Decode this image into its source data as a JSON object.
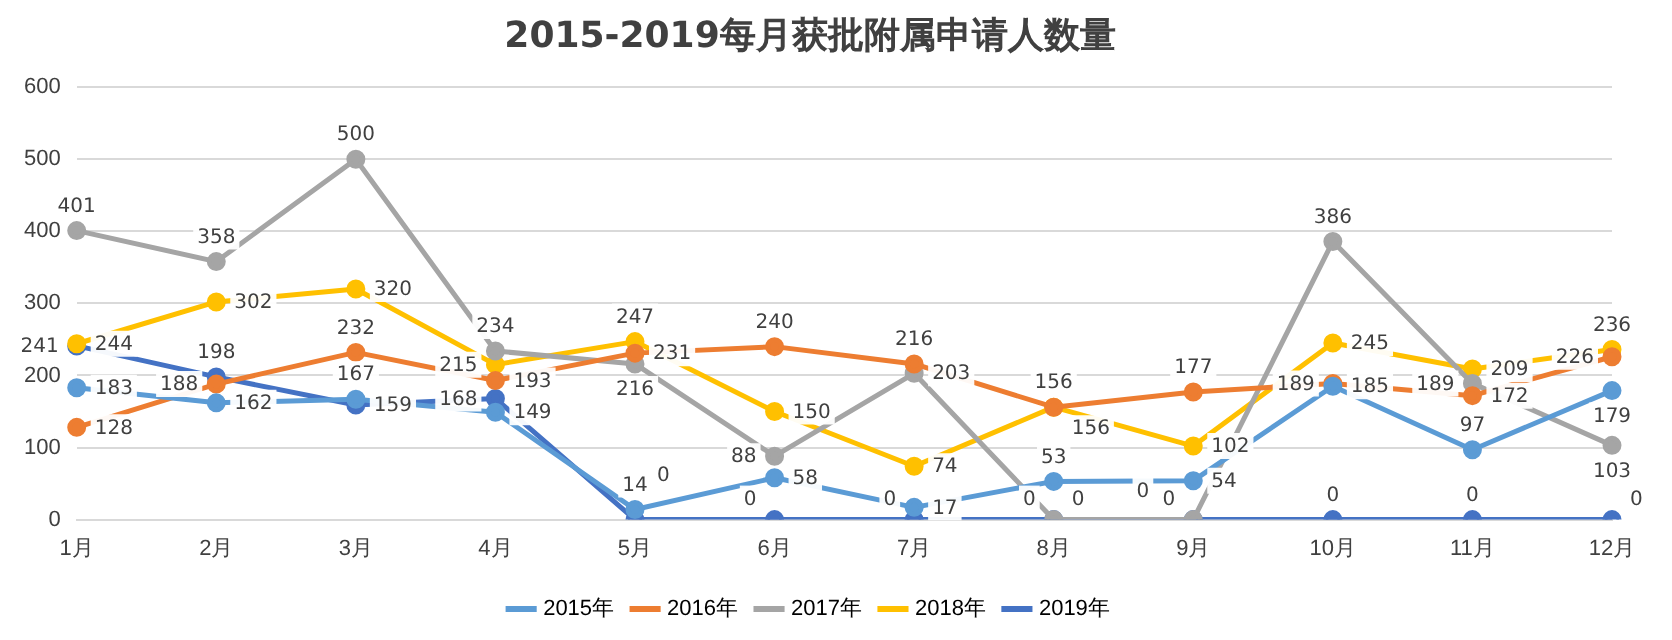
{
  "chart_data": {
    "type": "line",
    "title": "2015-2019每月获批附属申请人数量",
    "categories": [
      "1月",
      "2月",
      "3月",
      "4月",
      "5月",
      "6月",
      "7月",
      "8月",
      "9月",
      "10月",
      "11月",
      "12月"
    ],
    "series": [
      {
        "name": "2015年",
        "color": "#5b9bd5",
        "values": [
          183,
          162,
          167,
          149,
          14,
          58,
          17,
          53,
          54,
          185,
          97,
          179
        ]
      },
      {
        "name": "2016年",
        "color": "#ed7d31",
        "values": [
          128,
          188,
          232,
          193,
          231,
          240,
          216,
          156,
          177,
          189,
          172,
          226
        ]
      },
      {
        "name": "2017年",
        "color": "#a5a5a5",
        "values": [
          401,
          358,
          500,
          234,
          216,
          88,
          203,
          0,
          0,
          386,
          189,
          103
        ]
      },
      {
        "name": "2018年",
        "color": "#ffc000",
        "values": [
          244,
          302,
          320,
          215,
          247,
          150,
          74,
          156,
          102,
          245,
          209,
          236
        ]
      },
      {
        "name": "2019年",
        "color": "#4472c4",
        "values": [
          241,
          198,
          159,
          168,
          0,
          0,
          0,
          0,
          0,
          0,
          0,
          0
        ]
      }
    ],
    "ylim": [
      0,
      600
    ],
    "yticks": [
      0,
      100,
      200,
      300,
      400,
      500,
      600
    ],
    "grid": "y",
    "legend": "bottom",
    "marker": "circle",
    "line_style": "solid",
    "data_labels": true
  }
}
